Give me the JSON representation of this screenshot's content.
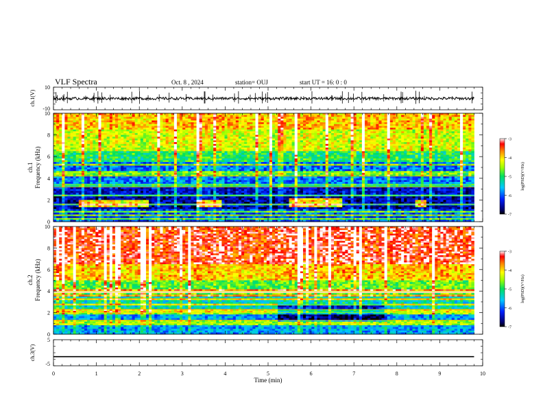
{
  "header": {
    "title": "VLF Spectra",
    "date": "Oct. 8 , 2024",
    "station": "station= OUJ",
    "start": "start UT = 16: 0 : 0"
  },
  "chart_data": [
    {
      "type": "line",
      "panel": "ch1-waveform",
      "ylabel": "ch.1(V)",
      "ylim": [
        -10,
        10
      ],
      "y_ticklabels": [
        "10",
        "-10"
      ],
      "xlim": [
        0,
        10
      ],
      "series": [
        {
          "baseline": 0,
          "amplitude_approx": 1.5
        }
      ]
    },
    {
      "type": "heatmap",
      "panel": "ch1-spectrogram",
      "ylabel": "ch.1\nFrequency (kHz)",
      "ylabel_line1": "ch.1",
      "ylabel_line2": "Frequency (kHz)",
      "ylim": [
        0,
        10
      ],
      "y_ticklabels": [
        "0",
        "2",
        "4",
        "6",
        "8",
        "10"
      ],
      "xlim": [
        0,
        9.8
      ],
      "value_range": [
        -7,
        -3
      ],
      "colorbar": {
        "label": "log(PSD)(V²/Hz)",
        "ticklabels": [
          "-3",
          "-4",
          "-5",
          "-6",
          "-7"
        ]
      },
      "bands_khz": [
        {
          "from": 8.5,
          "to": 10,
          "level": -3.9
        },
        {
          "from": 6.5,
          "to": 8.5,
          "level": -4.3
        },
        {
          "from": 5.5,
          "to": 6.5,
          "level": -5.0
        },
        {
          "from": 3.5,
          "to": 5.5,
          "level": -5.9
        },
        {
          "from": 2.5,
          "to": 3.5,
          "level": -6.4
        },
        {
          "from": 1.2,
          "to": 2.5,
          "level": -6.6
        },
        {
          "from": 0,
          "to": 1.2,
          "level": -6.1
        }
      ],
      "lines_khz": [
        0.3,
        0.6,
        0.9,
        1.6,
        2.4,
        3.2,
        3.4,
        4.2,
        4.5,
        5.2
      ],
      "bursts": [
        {
          "t0": 0.6,
          "t1": 2.2,
          "f0": 1.4,
          "f1": 2.0
        },
        {
          "t0": 3.3,
          "t1": 3.9,
          "f0": 1.4,
          "f1": 2.0
        },
        {
          "t0": 5.5,
          "t1": 6.7,
          "f0": 1.4,
          "f1": 2.2
        },
        {
          "t0": 8.4,
          "t1": 8.7,
          "f0": 1.4,
          "f1": 2.0
        }
      ]
    },
    {
      "type": "heatmap",
      "panel": "ch2-spectrogram",
      "ylabel": "ch.2\nFrequency (kHz)",
      "ylabel_line1": "ch.2",
      "ylabel_line2": "Frequency (kHz)",
      "ylim": [
        0,
        10
      ],
      "y_ticklabels": [
        "0",
        "2",
        "4",
        "6",
        "8",
        "10"
      ],
      "xlim": [
        0,
        9.8
      ],
      "value_range": [
        -7,
        -3
      ],
      "colorbar": {
        "label": "log(PSD)(V²/Hz)",
        "ticklabels": [
          "-3",
          "-4",
          "-5",
          "-6",
          "-7"
        ]
      },
      "bands_khz": [
        {
          "from": 6.5,
          "to": 10,
          "level": -3.3
        },
        {
          "from": 5.0,
          "to": 6.5,
          "level": -3.9
        },
        {
          "from": 3.5,
          "to": 5.0,
          "level": -4.7
        },
        {
          "from": 2.0,
          "to": 3.5,
          "level": -5.3
        },
        {
          "from": 0,
          "to": 2.0,
          "level": -5.7
        }
      ],
      "lines_khz": [
        1.0,
        1.3,
        2.0,
        2.3,
        2.7,
        3.3,
        3.6,
        3.9,
        4.0
      ],
      "quiet_region": {
        "t0": 5.2,
        "t1": 7.8,
        "f0": 1.2,
        "f1": 2.8
      }
    },
    {
      "type": "line",
      "panel": "ch3-waveform",
      "ylabel": "ch.3(V)",
      "ylim": [
        -5,
        5
      ],
      "y_ticklabels": [
        "5",
        "-5"
      ],
      "xlim": [
        0,
        10
      ],
      "series": [
        {
          "baseline": -1.5
        }
      ]
    }
  ],
  "time_axis": {
    "xlabel": "Time (min)",
    "xlim": [
      0,
      10
    ],
    "ticklabels": [
      "0",
      "1",
      "2",
      "3",
      "4",
      "5",
      "6",
      "7",
      "8",
      "9",
      "10"
    ]
  }
}
